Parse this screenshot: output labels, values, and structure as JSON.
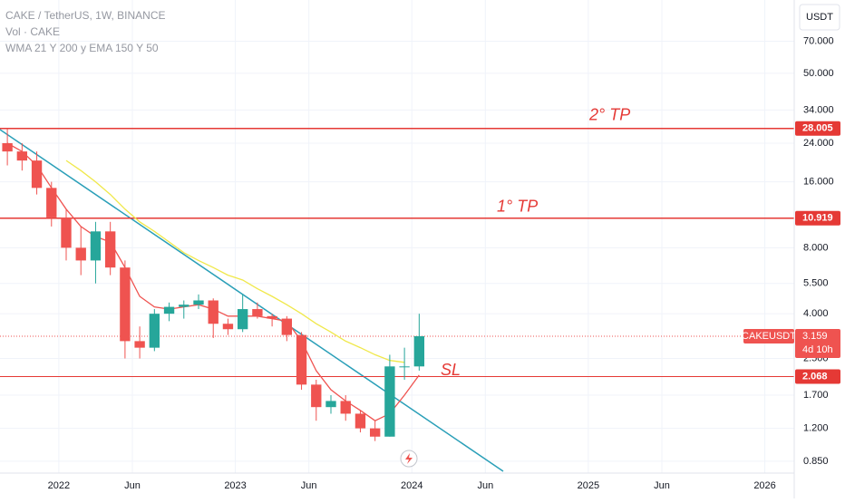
{
  "chart_data": {
    "type": "candlestick",
    "title": "CAKE / TetherUS, 1W, BINANCE",
    "subtitle": "Vol · CAKE",
    "indicator_label": "WMA 21 Y 200 y EMA 150 Y 50",
    "currency": "USDT",
    "log_scale": true,
    "grid": true,
    "x": [
      "2021-09",
      "2021-10",
      "2021-11",
      "2021-12",
      "2022-01",
      "2022-02",
      "2022-03",
      "2022-04",
      "2022-05",
      "2022-06",
      "2022-07",
      "2022-08",
      "2022-09",
      "2022-10",
      "2022-11",
      "2022-12",
      "2023-01",
      "2023-02",
      "2023-03",
      "2023-04",
      "2023-05",
      "2023-06",
      "2023-07",
      "2023-08",
      "2023-09",
      "2023-10",
      "2023-11",
      "2023-12",
      "2024-01"
    ],
    "open": [
      24,
      22,
      20,
      15,
      11,
      8,
      7,
      9.5,
      6.5,
      3,
      2.8,
      4,
      4.3,
      4.4,
      4.6,
      3.6,
      3.4,
      4.2,
      3.9,
      3.8,
      3.2,
      1.9,
      1.5,
      1.6,
      1.4,
      1.2,
      1.1,
      2.3,
      2.3
    ],
    "high": [
      28,
      24,
      22,
      16,
      12,
      10,
      10.5,
      10.5,
      7,
      3.5,
      4.2,
      4.5,
      4.6,
      4.9,
      4.7,
      3.8,
      4.9,
      4.5,
      4,
      3.9,
      3.3,
      2,
      1.7,
      1.7,
      1.45,
      1.3,
      2.6,
      2.8,
      4
    ],
    "low": [
      19,
      18,
      14,
      10,
      7,
      6,
      5.5,
      6,
      2.5,
      2.5,
      2.7,
      3.7,
      3.8,
      4.2,
      3.1,
      3.2,
      3.3,
      3.8,
      3.5,
      3,
      1.8,
      1.3,
      1.4,
      1.3,
      1.15,
      1.05,
      1.1,
      2,
      2.2
    ],
    "close": [
      22,
      20,
      15,
      11,
      8,
      7,
      9.5,
      6.5,
      3,
      2.8,
      4,
      4.3,
      4.4,
      4.6,
      3.6,
      3.4,
      4.2,
      3.9,
      3.8,
      3.2,
      1.9,
      1.5,
      1.6,
      1.4,
      1.2,
      1.1,
      2.3,
      2.3,
      3.159
    ],
    "up_color": "#26a69a",
    "down_color": "#ef5350",
    "series": [
      {
        "color": "#ef5350",
        "values": [
          24,
          22,
          19,
          15,
          12,
          10,
          9,
          8.5,
          6.5,
          4.8,
          4.3,
          4.2,
          4.3,
          4.4,
          4.2,
          3.9,
          3.9,
          3.9,
          3.8,
          3.7,
          3.0,
          2.2,
          1.8,
          1.6,
          1.45,
          1.3,
          1.4,
          1.7,
          2.1
        ]
      },
      {
        "color": "#f0e84a",
        "values": [
          null,
          null,
          null,
          null,
          20,
          18,
          16,
          14,
          12,
          10.5,
          9.5,
          8.5,
          7.6,
          7,
          6.5,
          6,
          5.7,
          5.2,
          4.8,
          4.4,
          4,
          3.6,
          3.3,
          3,
          2.8,
          2.6,
          2.45,
          2.4,
          null
        ]
      }
    ],
    "levels": [
      {
        "value": 28.005,
        "label": "28.005",
        "annotation": "2° TP"
      },
      {
        "value": 10.919,
        "label": "10.919",
        "annotation": "1° TP"
      },
      {
        "value": 2.068,
        "label": "2.068",
        "annotation": "SL"
      }
    ],
    "last_price": {
      "symbol": "CAKEUSDT",
      "value": 3.159,
      "label": "3.159",
      "countdown": "4d 10h"
    },
    "xlim": [
      "2021-09",
      "2026-03"
    ],
    "xticks": [
      {
        "value": "2022-01",
        "label": "2022"
      },
      {
        "value": "2022-06",
        "label": "Jun"
      },
      {
        "value": "2023-01",
        "label": "2023"
      },
      {
        "value": "2023-06",
        "label": "Jun"
      },
      {
        "value": "2024-01",
        "label": "2024"
      },
      {
        "value": "2024-06",
        "label": "Jun"
      },
      {
        "value": "2025-01",
        "label": "2025"
      },
      {
        "value": "2025-06",
        "label": "Jun"
      },
      {
        "value": "2026-01",
        "label": "2026"
      }
    ],
    "ylim": [
      0.75,
      108
    ],
    "yticks": [
      {
        "value": 0.85,
        "label": "0.850"
      },
      {
        "value": 1.2,
        "label": "1.200"
      },
      {
        "value": 1.7,
        "label": "1.700"
      },
      {
        "value": 2.5,
        "label": "2.500"
      },
      {
        "value": 4,
        "label": "4.000"
      },
      {
        "value": 5.5,
        "label": "5.500"
      },
      {
        "value": 8,
        "label": "8.000"
      },
      {
        "value": 16,
        "label": "16.000"
      },
      {
        "value": 24,
        "label": "24.000"
      },
      {
        "value": 34,
        "label": "34.000"
      },
      {
        "value": 50,
        "label": "50.000"
      },
      {
        "value": 70,
        "label": "70.000"
      }
    ]
  }
}
